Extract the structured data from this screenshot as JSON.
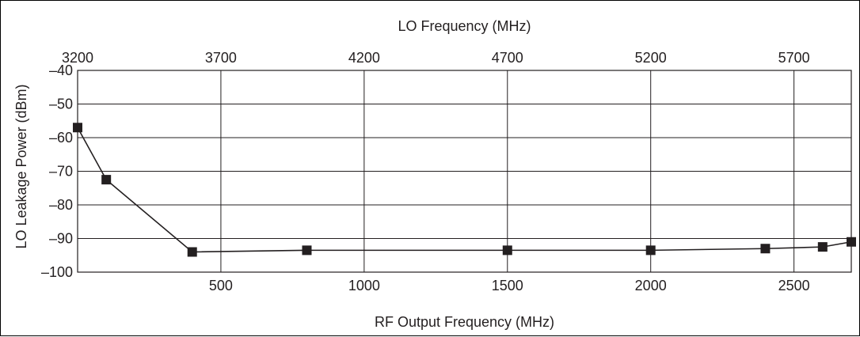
{
  "chart_data": {
    "type": "line",
    "title": "",
    "xlabel": "RF Output Frequency (MHz)",
    "x2label": "LO Frequency (MHz)",
    "ylabel": "LO Leakage Power (dBm)",
    "xlim": [
      0,
      2700
    ],
    "ylim": [
      -100,
      -40
    ],
    "x_ticks": [
      500,
      1000,
      1500,
      2000,
      2500
    ],
    "x_tick_labels": [
      "500",
      "1000",
      "1500",
      "2000",
      "2500"
    ],
    "x2_ticks": [
      3200,
      3700,
      4200,
      4700,
      5200,
      5700
    ],
    "x2_tick_labels": [
      "3200",
      "3700",
      "4200",
      "4700",
      "5200",
      "5700"
    ],
    "y_ticks": [
      -40,
      -50,
      -60,
      -70,
      -80,
      -90,
      -100
    ],
    "y_tick_labels": [
      "–40",
      "–50",
      "–60",
      "–70",
      "–80",
      "–90",
      "–100"
    ],
    "grid": true,
    "series": [
      {
        "x": [
          0,
          100,
          400,
          800,
          1500,
          2000,
          2400,
          2600,
          2700
        ],
        "y": [
          -57,
          -72.5,
          -94,
          -93.5,
          -93.5,
          -93.5,
          -93,
          -92.5,
          -91
        ]
      }
    ]
  }
}
